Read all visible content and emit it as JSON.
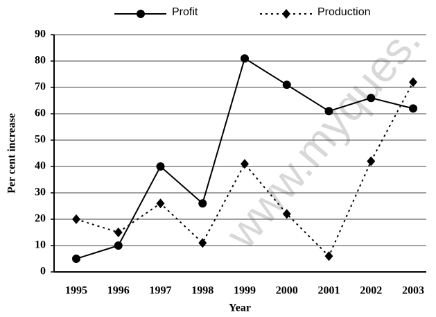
{
  "chart_data": {
    "type": "line",
    "x_label": "Year",
    "y_label": "Per cent increase",
    "categories": [
      "1995",
      "1996",
      "1997",
      "1998",
      "1999",
      "2000",
      "2001",
      "2002",
      "2003"
    ],
    "series": [
      {
        "name": "Profit",
        "color": "#000000",
        "line_style": "solid",
        "marker": "circle",
        "values": [
          5,
          10,
          40,
          26,
          81,
          71,
          61,
          66,
          62
        ]
      },
      {
        "name": "Production",
        "color": "#000000",
        "line_style": "dotted",
        "marker": "diamond",
        "values": [
          20,
          15,
          26,
          11,
          41,
          22,
          6,
          42,
          72
        ]
      }
    ],
    "ylim": [
      0,
      90
    ],
    "yticks": [
      0,
      10,
      20,
      30,
      40,
      50,
      60,
      70,
      80,
      90
    ],
    "grid": true,
    "legend": "top",
    "watermark": "www.myques."
  }
}
